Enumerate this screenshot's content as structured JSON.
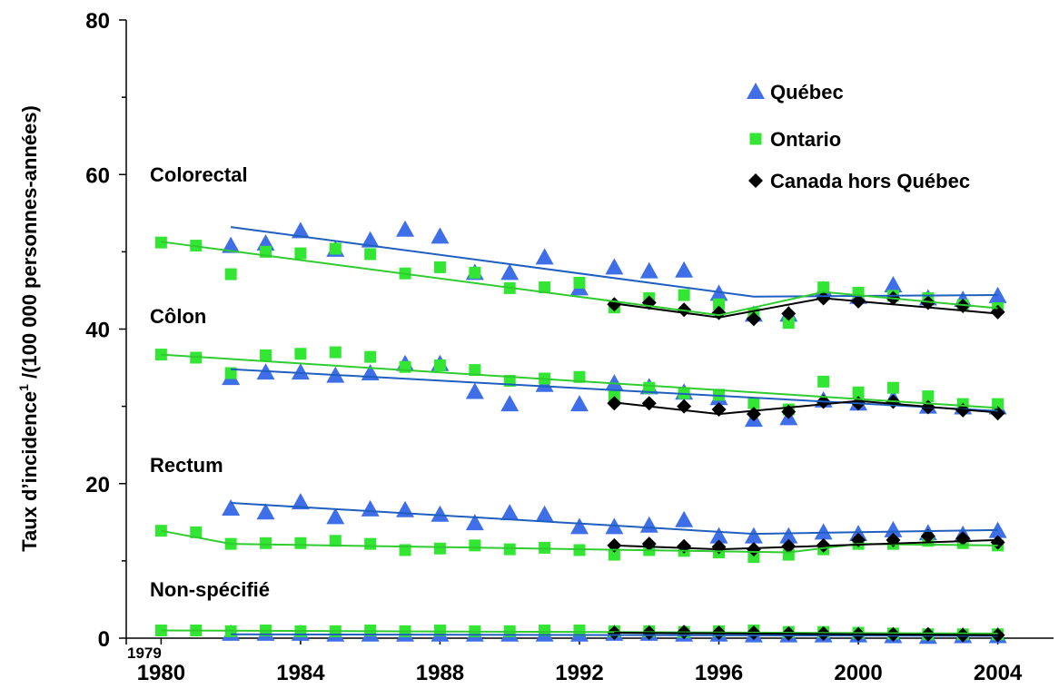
{
  "chart_data": {
    "type": "scatter",
    "y_label": [
      "Taux d’incidence",
      "1",
      " /(100 000 personnes-années)"
    ],
    "groups": [
      "Colorectal",
      "Côlon",
      "Rectum",
      "Non-spécifié"
    ],
    "xlim": [
      1979,
      2005.6
    ],
    "xticks": [
      1979,
      1980,
      1984,
      1988,
      1992,
      1996,
      2000,
      2004
    ],
    "ylim": [
      0,
      80
    ],
    "yticks": [
      0,
      20,
      40,
      60,
      80
    ],
    "yminor": [
      10,
      30,
      50,
      70
    ],
    "legend": "top-right",
    "series": [
      {
        "name": "Québec",
        "color": "#3f6fe8",
        "line_color": "#1f5fbf",
        "marker": "triangle",
        "x": [
          1982,
          1983,
          1984,
          1985,
          1986,
          1987,
          1988,
          1989,
          1990,
          1991,
          1992,
          1993,
          1994,
          1995,
          1996,
          1997,
          1998,
          1999,
          2000,
          2001,
          2002,
          2003,
          2004
        ],
        "values": [
          [
            50.8,
            51.1,
            52.7,
            50.3,
            51.5,
            52.9,
            52.0,
            47.3,
            47.3,
            49.3,
            45.3,
            48.0,
            47.5,
            47.6,
            44.6,
            41.9,
            41.9,
            45.1,
            44.2,
            45.7,
            44.0,
            43.8,
            44.3
          ],
          [
            33.7,
            34.4,
            34.4,
            34.0,
            34.3,
            35.5,
            35.5,
            31.9,
            30.3,
            32.8,
            30.3,
            33.0,
            32.5,
            31.8,
            31.1,
            28.3,
            28.5,
            30.8,
            30.4,
            31.0,
            30.0,
            29.9,
            29.9
          ],
          [
            16.8,
            16.3,
            17.6,
            15.7,
            16.7,
            16.6,
            16.0,
            14.9,
            16.2,
            16.0,
            14.4,
            14.4,
            14.6,
            15.3,
            13.2,
            13.2,
            13.2,
            13.7,
            13.5,
            14.0,
            13.6,
            13.4,
            13.9
          ],
          [
            0.6,
            0.6,
            0.6,
            0.5,
            0.5,
            0.5,
            0.5,
            0.5,
            0.5,
            0.5,
            0.5,
            0.6,
            0.6,
            0.5,
            0.5,
            0.4,
            0.4,
            0.4,
            0.4,
            0.3,
            0.2,
            0.3,
            0.3
          ]
        ],
        "trend_x": [
          [
            1982,
            1997,
            2004
          ],
          [
            1982,
            2004
          ],
          [
            1982,
            1997,
            2004
          ],
          [
            1982,
            2004
          ]
        ],
        "trend": [
          [
            53.2,
            44.2,
            44.4
          ],
          [
            34.8,
            29.4
          ],
          [
            17.5,
            13.5,
            14.0
          ],
          [
            0.5,
            0.3
          ]
        ]
      },
      {
        "name": "Ontario",
        "color": "#33e633",
        "line_color": "#2ecc2e",
        "marker": "square",
        "x": [
          1980,
          1981,
          1982,
          1983,
          1984,
          1985,
          1986,
          1987,
          1988,
          1989,
          1990,
          1991,
          1992,
          1993,
          1994,
          1995,
          1996,
          1997,
          1998,
          1999,
          2000,
          2001,
          2002,
          2003,
          2004
        ],
        "values": [
          [
            51.2,
            50.8,
            47.1,
            50.0,
            49.8,
            50.4,
            49.7,
            47.2,
            48.0,
            47.3,
            45.3,
            45.4,
            46.0,
            42.8,
            44.0,
            44.4,
            43.2,
            42.0,
            40.8,
            45.4,
            44.7,
            44.3,
            44.0,
            43.1,
            42.7
          ],
          [
            36.7,
            36.3,
            34.3,
            36.6,
            36.8,
            37.0,
            36.4,
            35.1,
            35.3,
            34.7,
            33.3,
            33.6,
            33.8,
            31.3,
            32.4,
            31.7,
            31.5,
            30.4,
            29.6,
            33.2,
            31.8,
            32.4,
            31.3,
            30.3,
            30.3
          ],
          [
            13.9,
            13.7,
            12.2,
            12.3,
            12.3,
            12.6,
            12.2,
            11.4,
            11.6,
            12.0,
            11.5,
            11.7,
            11.4,
            10.8,
            11.4,
            11.3,
            11.1,
            10.5,
            10.8,
            11.5,
            12.2,
            12.2,
            12.6,
            12.3,
            12.0
          ],
          [
            1.0,
            1.0,
            0.9,
            1.0,
            0.9,
            0.9,
            1.0,
            0.9,
            1.0,
            0.9,
            0.9,
            1.0,
            1.0,
            0.9,
            0.9,
            0.8,
            0.9,
            1.0,
            0.8,
            0.8,
            0.7,
            0.6,
            0.5,
            0.5,
            0.5
          ]
        ],
        "trend_x": [
          [
            1980,
            1996,
            1999,
            2004
          ],
          [
            1980,
            2004
          ],
          [
            1980,
            1982,
            1998,
            2000,
            2004
          ],
          [
            1980,
            2004
          ]
        ],
        "trend": [
          [
            51.3,
            41.8,
            44.8,
            42.7
          ],
          [
            36.7,
            29.8
          ],
          [
            13.9,
            12.2,
            11.1,
            12.2,
            12.0
          ],
          [
            1.0,
            0.6
          ]
        ]
      },
      {
        "name": "Canada hors Québec",
        "color": "#000000",
        "line_color": "#000000",
        "marker": "diamond",
        "x": [
          1993,
          1994,
          1995,
          1996,
          1997,
          1998,
          1999,
          2000,
          2001,
          2002,
          2003,
          2004
        ],
        "values": [
          [
            43.2,
            43.4,
            42.5,
            42.1,
            41.3,
            42.0,
            44.0,
            43.6,
            44.0,
            43.4,
            43.0,
            42.2
          ],
          [
            30.4,
            30.4,
            30.0,
            29.6,
            29.0,
            29.3,
            30.6,
            30.4,
            30.6,
            29.9,
            29.5,
            29.1
          ],
          [
            12.0,
            12.2,
            11.9,
            11.8,
            11.5,
            11.9,
            12.0,
            12.7,
            12.7,
            13.2,
            12.9,
            12.4
          ],
          [
            0.7,
            0.7,
            0.8,
            0.7,
            0.7,
            0.6,
            0.6,
            0.5,
            0.5,
            0.5,
            0.4,
            0.4
          ]
        ],
        "trend_x": [
          [
            1993,
            1996,
            1999,
            2004
          ],
          [
            1993,
            1996,
            2000,
            2004
          ],
          [
            1993,
            1996,
            2004
          ],
          [
            1993,
            2004
          ]
        ],
        "trend": [
          [
            43.3,
            41.5,
            44.0,
            42.0
          ],
          [
            30.5,
            29.0,
            30.7,
            29.2
          ],
          [
            12.0,
            11.5,
            12.7
          ],
          [
            0.7,
            0.4
          ]
        ]
      }
    ]
  }
}
